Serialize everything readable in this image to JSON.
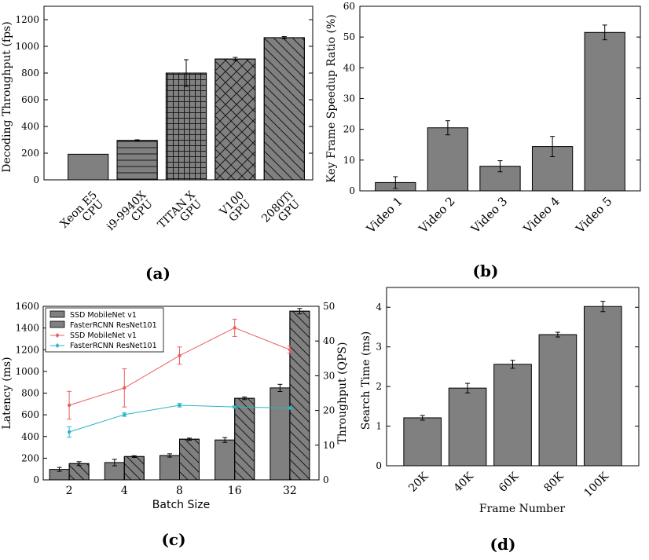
{
  "chart_data": [
    {
      "id": "a",
      "type": "bar",
      "panel_label": "(a)",
      "ylabel": "Decoding Throughput (fps)",
      "ylim": [
        0,
        1300
      ],
      "yticks": [
        0,
        200,
        400,
        600,
        800,
        1000,
        1200
      ],
      "categories": [
        [
          "Xeon E5",
          "CPU"
        ],
        [
          "i9-9940X",
          "CPU"
        ],
        [
          "TITAN X",
          "GPU"
        ],
        [
          "V100",
          "GPU"
        ],
        [
          "2080Ti",
          "GPU"
        ]
      ],
      "values": [
        192,
        295,
        800,
        905,
        1065
      ],
      "errors": [
        0,
        5,
        100,
        12,
        8
      ],
      "hatches": [
        "none",
        "hline",
        "grid",
        "cross",
        "diag"
      ]
    },
    {
      "id": "b",
      "type": "bar",
      "panel_label": "(b)",
      "ylabel": "Key Frame Speedup Ratio (%)",
      "ylim": [
        0,
        60
      ],
      "yticks": [
        0,
        10,
        20,
        30,
        40,
        50,
        60
      ],
      "categories": [
        "Video 1",
        "Video 2",
        "Video 3",
        "Video 4",
        "Video 5"
      ],
      "values": [
        2.7,
        20.5,
        8.0,
        14.4,
        51.5
      ],
      "errors": [
        1.9,
        2.3,
        1.8,
        3.3,
        2.4
      ]
    },
    {
      "id": "c",
      "type": "bar+line",
      "panel_label": "(c)",
      "xlabel": "Batch Size",
      "ylabel": "Latency (ms)",
      "ylabel_right": "Throughput (QPS)",
      "categories": [
        "2",
        "4",
        "8",
        "16",
        "32"
      ],
      "ylim": [
        0,
        1600
      ],
      "yticks": [
        0,
        200,
        400,
        600,
        800,
        1000,
        1200,
        1400,
        1600
      ],
      "ylim_right": [
        0,
        50
      ],
      "yticks_right": [
        0,
        10,
        20,
        30,
        40,
        50
      ],
      "bar_series": [
        {
          "name": "SSD MobileNet v1",
          "values": [
            97,
            160,
            225,
            368,
            848
          ],
          "errors": [
            18,
            30,
            15,
            22,
            33
          ],
          "hatch": "none"
        },
        {
          "name": "FasterRCNN ResNet101",
          "values": [
            150,
            215,
            375,
            752,
            1555
          ],
          "errors": [
            18,
            8,
            10,
            12,
            25
          ],
          "hatch": "diag"
        }
      ],
      "line_series": [
        {
          "name": "SSD MobileNet v1",
          "color": "#e8605f",
          "values": [
            21.5,
            26.5,
            35.8,
            43.8,
            37.5
          ],
          "errors": [
            4.0,
            5.5,
            2.5,
            2.5,
            1.0
          ]
        },
        {
          "name": "FasterRCNN ResNet101",
          "color": "#2ab5c6",
          "values": [
            13.8,
            18.8,
            21.5,
            21.0,
            20.7
          ],
          "errors": [
            1.5,
            0.5,
            0.5,
            0.3,
            0.3
          ]
        }
      ],
      "legend": "top-left"
    },
    {
      "id": "d",
      "type": "bar",
      "panel_label": "(d)",
      "xlabel": "Frame Number",
      "ylabel": "Search Time (ms)",
      "ylim": [
        0,
        4.5
      ],
      "yticks": [
        0,
        1,
        2,
        3,
        4
      ],
      "categories": [
        "20K",
        "40K",
        "60K",
        "80K",
        "100K"
      ],
      "values": [
        1.21,
        1.96,
        2.56,
        3.31,
        4.02
      ],
      "errors": [
        0.06,
        0.12,
        0.1,
        0.06,
        0.13
      ]
    }
  ],
  "colors": {
    "bar_fill": "#808080",
    "hatch": "#1a1a1a",
    "axis": "#000000"
  }
}
